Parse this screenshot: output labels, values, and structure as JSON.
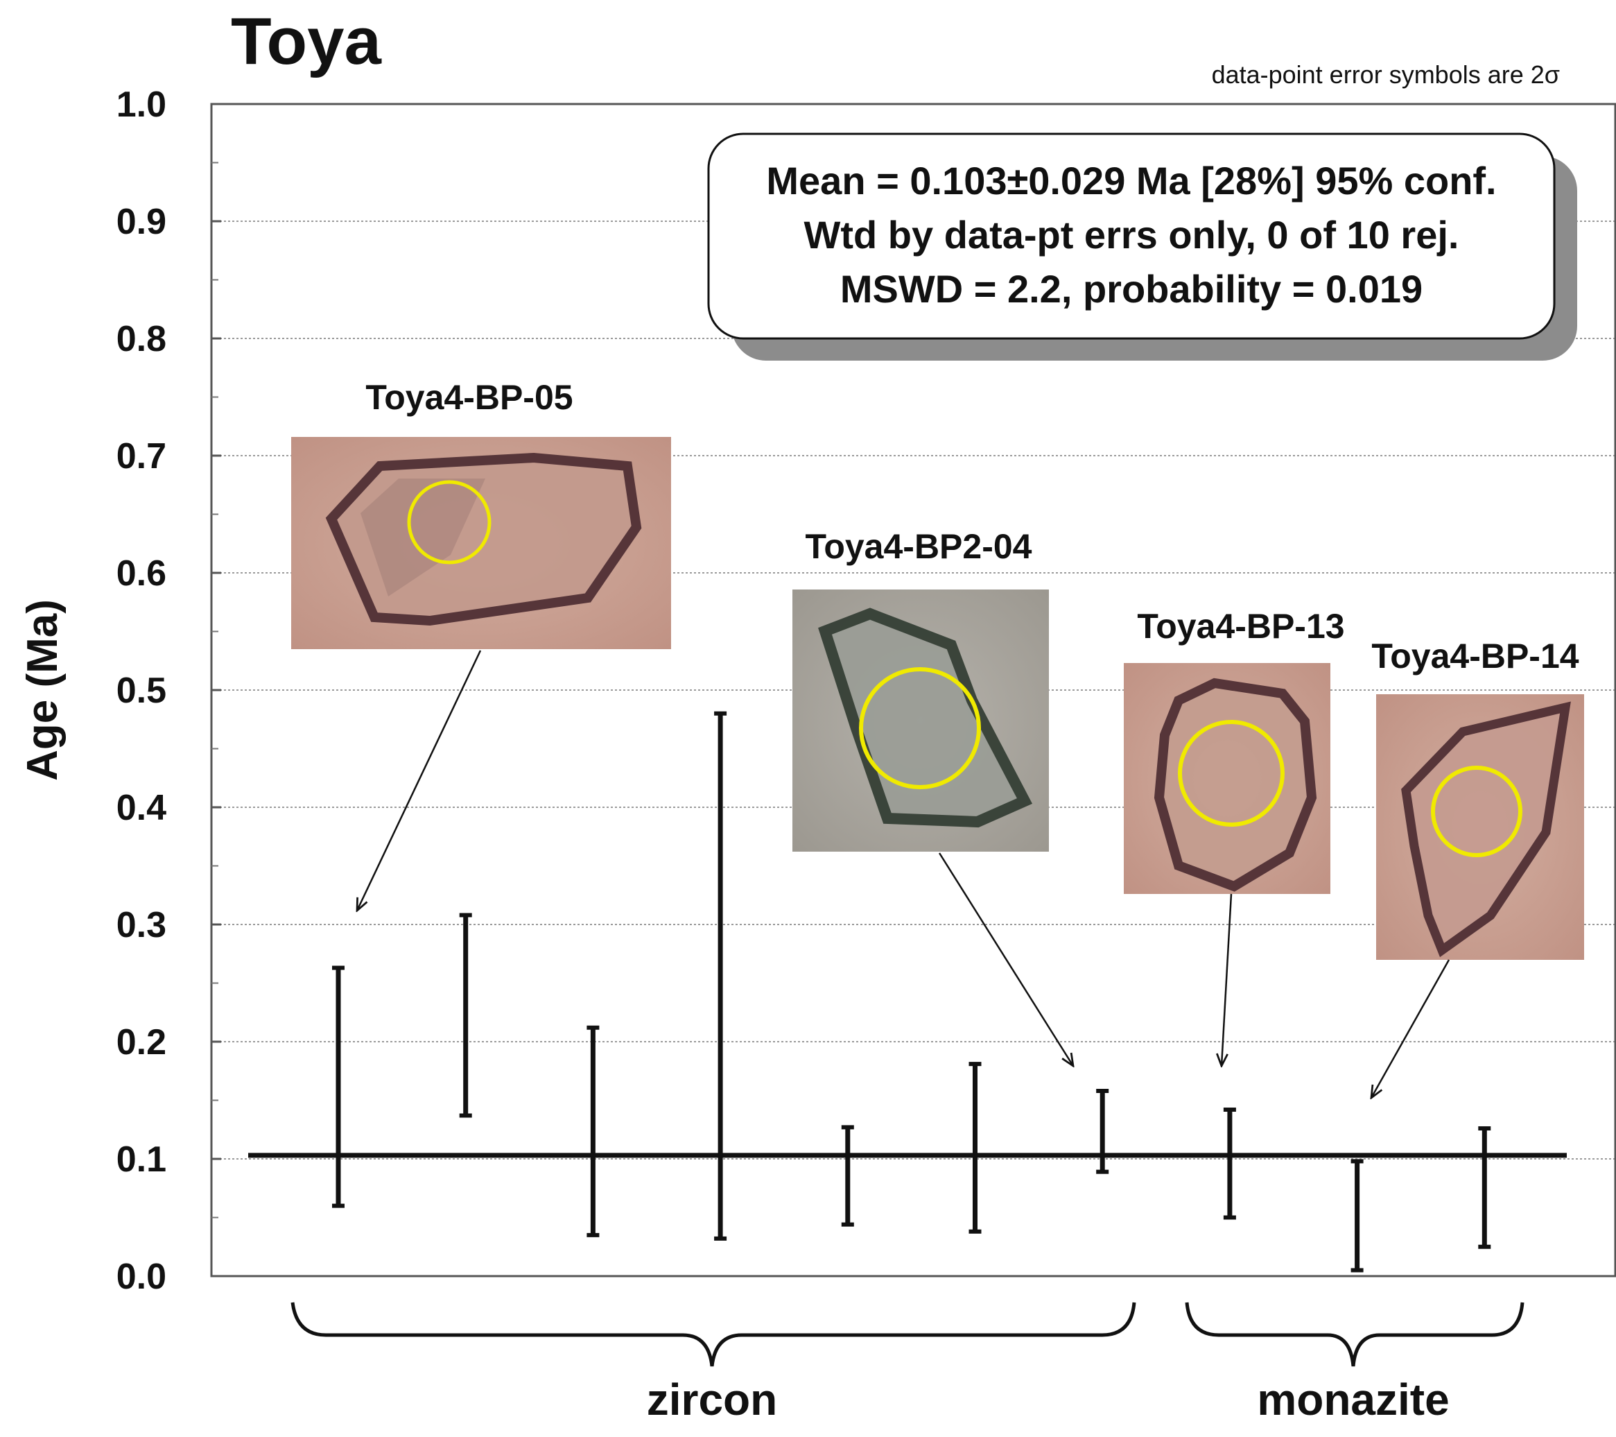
{
  "title": "Toya",
  "note": "data-point error symbols are 2σ",
  "stats": [
    "Mean = 0.103±0.029 Ma [28%]  95% conf.",
    "Wtd by data-pt errs only, 0 of 10 rej.",
    "MSWD = 2.2, probability = 0.019"
  ],
  "colors": {
    "crystal_zircon_bg": "#c8a092",
    "crystal_gray_bg": "#a8a49c",
    "crystal_edge": "#4a2a30",
    "spot_circle": "#f0ea00",
    "grid": "#9a9a9a",
    "ink": "#111111",
    "shadow": "#8c8c8c"
  },
  "chart_data": {
    "type": "error-bar",
    "title": "Toya",
    "ylabel": "Age (Ma)",
    "xlabel": "",
    "ylim": [
      0,
      1.0
    ],
    "yticks": [
      "0.0",
      "0.1",
      "0.2",
      "0.3",
      "0.4",
      "0.5",
      "0.6",
      "0.7",
      "0.8",
      "0.9",
      "1.0"
    ],
    "grid": true,
    "mean": 0.103,
    "points": [
      {
        "index": 1,
        "low": 0.06,
        "high": 0.263,
        "mineral": "zircon"
      },
      {
        "index": 2,
        "low": 0.137,
        "high": 0.308,
        "mineral": "zircon"
      },
      {
        "index": 3,
        "low": 0.035,
        "high": 0.212,
        "mineral": "zircon"
      },
      {
        "index": 4,
        "low": 0.032,
        "high": 0.48,
        "mineral": "zircon"
      },
      {
        "index": 5,
        "low": 0.044,
        "high": 0.127,
        "mineral": "zircon"
      },
      {
        "index": 6,
        "low": 0.038,
        "high": 0.181,
        "mineral": "zircon"
      },
      {
        "index": 7,
        "low": 0.089,
        "high": 0.158,
        "mineral": "zircon"
      },
      {
        "index": 8,
        "low": 0.05,
        "high": 0.142,
        "mineral": "monazite"
      },
      {
        "index": 9,
        "low": 0.005,
        "high": 0.098,
        "mineral": "monazite"
      },
      {
        "index": 10,
        "low": 0.025,
        "high": 0.126,
        "mineral": "monazite"
      }
    ],
    "groups": [
      {
        "label": "zircon",
        "from": 1,
        "to": 7
      },
      {
        "label": "monazite",
        "from": 8,
        "to": 10
      }
    ],
    "annotations": [
      {
        "label": "Toya4-BP-05",
        "target_index": 1
      },
      {
        "label": "Toya4-BP2-04",
        "target_index": 7
      },
      {
        "label": "Toya4-BP-13",
        "target_index": 8
      },
      {
        "label": "Toya4-BP-14",
        "target_index": 9
      }
    ]
  }
}
